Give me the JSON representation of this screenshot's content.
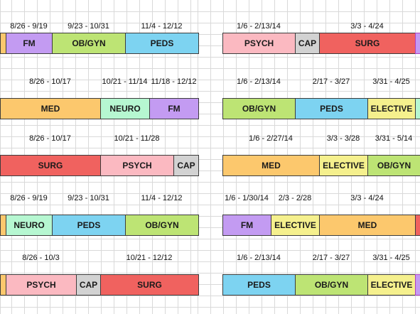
{
  "colors": {
    "FM": "#c39bf2",
    "OB/GYN": "#bde474",
    "PEDS": "#7dd3f1",
    "PSYCH": "#fbb9c1",
    "CAP": "#d2d2d2",
    "SURG": "#f0625f",
    "MED": "#fcc86d",
    "NEURO": "#b6f7d1",
    "ELECTIVE": "#f5f08d",
    "accent": "#fcc86d"
  },
  "rows": [
    {
      "id": "row-1",
      "blocks": [
        {
          "label": "",
          "color": "accent",
          "date": ""
        },
        {
          "label": "FM",
          "color": "FM",
          "date": "8/26 - 9/19"
        },
        {
          "label": "OB/GYN",
          "color": "OB/GYN",
          "date": "9/23 - 10/31"
        },
        {
          "label": "PEDS",
          "color": "PEDS",
          "date": "11/4 - 12/12"
        },
        {
          "label": "PSYCH",
          "color": "PSYCH",
          "date": "1/6 - 2/13/14"
        },
        {
          "label": "CAP",
          "color": "CAP",
          "date": ""
        },
        {
          "label": "SURG",
          "color": "SURG",
          "date": "3/3 - 4/24"
        },
        {
          "label": "",
          "color": "FM",
          "date": ""
        }
      ]
    },
    {
      "id": "row-2",
      "blocks": [
        {
          "label": "MED",
          "color": "MED",
          "date": "8/26 - 10/17"
        },
        {
          "label": "NEURO",
          "color": "NEURO",
          "date": "10/21 - 11/14"
        },
        {
          "label": "FM",
          "color": "FM",
          "date": "11/18 - 12/12"
        },
        {
          "label": "OB/GYN",
          "color": "OB/GYN",
          "date": "1/6 - 2/13/14"
        },
        {
          "label": "PEDS",
          "color": "PEDS",
          "date": "2/17 - 3/27"
        },
        {
          "label": "ELECTIVE",
          "color": "ELECTIVE",
          "date": "3/31 - 4/25"
        },
        {
          "label": "",
          "color": "NEURO",
          "date": ""
        }
      ]
    },
    {
      "id": "row-3",
      "blocks": [
        {
          "label": "SURG",
          "color": "SURG",
          "date": "8/26 - 10/17"
        },
        {
          "label": "PSYCH",
          "color": "PSYCH",
          "date": "10/21 - 11/28"
        },
        {
          "label": "CAP",
          "color": "CAP",
          "date": ""
        },
        {
          "label": "MED",
          "color": "MED",
          "date": "1/6 - 2/27/14"
        },
        {
          "label": "ELECTIVE",
          "color": "ELECTIVE",
          "date": "3/3 - 3/28"
        },
        {
          "label": "OB/GYN",
          "color": "OB/GYN",
          "date": "3/31 - 5/14"
        }
      ]
    },
    {
      "id": "row-4",
      "blocks": [
        {
          "label": "",
          "color": "accent",
          "date": ""
        },
        {
          "label": "NEURO",
          "color": "NEURO",
          "date": "8/26 - 9/19"
        },
        {
          "label": "PEDS",
          "color": "PEDS",
          "date": "9/23 - 10/31"
        },
        {
          "label": "OB/GYN",
          "color": "OB/GYN",
          "date": "11/4 - 12/12"
        },
        {
          "label": "FM",
          "color": "FM",
          "date": "1/6 - 1/30/14"
        },
        {
          "label": "ELECTIVE",
          "color": "ELECTIVE",
          "date": "2/3 - 2/28"
        },
        {
          "label": "MED",
          "color": "MED",
          "date": "3/3 - 4/24"
        },
        {
          "label": "",
          "color": "SURG",
          "date": ""
        }
      ]
    },
    {
      "id": "row-5",
      "blocks": [
        {
          "label": "",
          "color": "accent",
          "date": ""
        },
        {
          "label": "PSYCH",
          "color": "PSYCH",
          "date": "8/26 - 10/3"
        },
        {
          "label": "CAP",
          "color": "CAP",
          "date": ""
        },
        {
          "label": "SURG",
          "color": "SURG",
          "date": "10/21 - 12/12"
        },
        {
          "label": "PEDS",
          "color": "PEDS",
          "date": "1/6 - 2/13/14"
        },
        {
          "label": "OB/GYN",
          "color": "OB/GYN",
          "date": "2/17 - 3/27"
        },
        {
          "label": "ELECTIVE",
          "color": "ELECTIVE",
          "date": "3/31 - 4/25"
        },
        {
          "label": "",
          "color": "FM",
          "date": ""
        }
      ]
    }
  ]
}
